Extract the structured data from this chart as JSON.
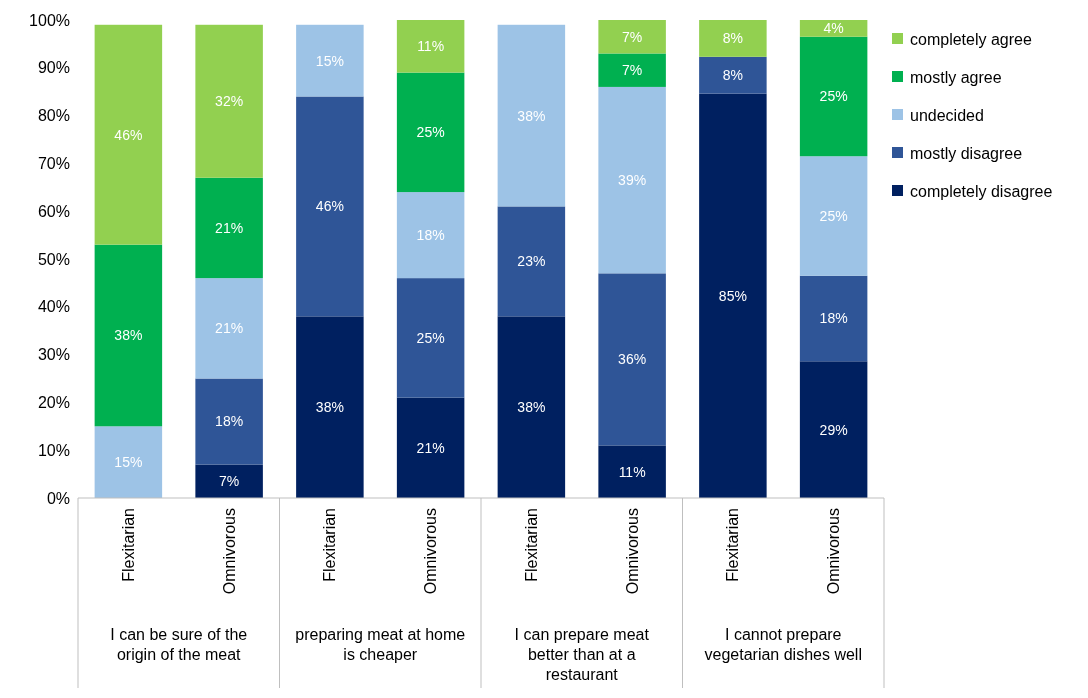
{
  "chart_data": {
    "type": "bar",
    "stacked": true,
    "categories": [
      "Flexitarian",
      "Omnivorous",
      "Flexitarian",
      "Omnivorous",
      "Flexitarian",
      "Omnivorous",
      "Flexitarian",
      "Omnivorous"
    ],
    "annotations": [
      "I can be sure of the origin of the meat",
      "preparing meat at home is cheaper",
      "I can prepare meat better than at a restaurant",
      "I cannot prepare vegetarian dishes well"
    ],
    "series": [
      {
        "name": "completely disagree",
        "color": "#002060",
        "values": [
          null,
          7,
          38,
          21,
          38,
          11,
          84.6,
          28.6
        ],
        "value_labels": [
          null,
          "7%",
          "38%",
          "21%",
          "38%",
          "11%",
          "85%",
          "29%"
        ]
      },
      {
        "name": "mostly disagree",
        "color": "#2f5597",
        "values": [
          null,
          18,
          46,
          25,
          23,
          36,
          7.7,
          17.9
        ],
        "value_labels": [
          null,
          "18%",
          "46%",
          "25%",
          "23%",
          "36%",
          "8%",
          "18%"
        ]
      },
      {
        "name": "undecided",
        "color": "#9dc3e6",
        "values": [
          15,
          21,
          15,
          18,
          38,
          39,
          null,
          25
        ],
        "value_labels": [
          "15%",
          "21%",
          "15%",
          "18%",
          "38%",
          "39%",
          null,
          "25%"
        ]
      },
      {
        "name": "mostly agree",
        "color": "#00b050",
        "values": [
          38,
          21,
          null,
          25,
          null,
          7,
          null,
          25
        ],
        "value_labels": [
          "38%",
          "21%",
          null,
          "25%",
          null,
          "7%",
          null,
          "25%"
        ]
      },
      {
        "name": "completely agree",
        "color": "#92d050",
        "values": [
          46,
          32,
          null,
          11,
          null,
          7,
          7.7,
          3.5
        ],
        "value_labels": [
          "46%",
          "32%",
          null,
          "11%",
          null,
          "7%",
          "8%",
          "4%"
        ]
      }
    ],
    "ylim": [
      0,
      100
    ],
    "yticks": [
      {
        "value": 0,
        "label": "0%"
      },
      {
        "value": 10,
        "label": "10%"
      },
      {
        "value": 20,
        "label": "20%"
      },
      {
        "value": 30,
        "label": "30%"
      },
      {
        "value": 40,
        "label": "40%"
      },
      {
        "value": 50,
        "label": "50%"
      },
      {
        "value": 60,
        "label": "60%"
      },
      {
        "value": 70,
        "label": "70%"
      },
      {
        "value": 80,
        "label": "80%"
      },
      {
        "value": 90,
        "label": "90%"
      },
      {
        "value": 100,
        "label": "100%"
      }
    ],
    "legend": "right"
  }
}
